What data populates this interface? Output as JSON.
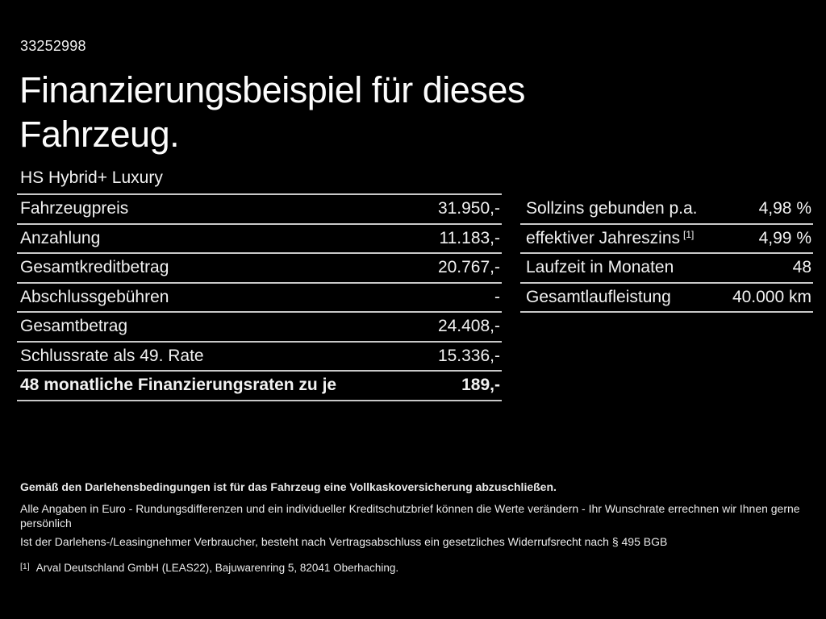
{
  "header": {
    "vehicle_id": "33252998",
    "title": "Finanzierungsbeispiel für dieses Fahrzeug.",
    "model_name": "HS Hybrid+ Luxury"
  },
  "left_table": {
    "rows": [
      {
        "label": "Fahrzeugpreis",
        "value": "31.950,-"
      },
      {
        "label": "Anzahlung",
        "value": "11.183,-"
      },
      {
        "label": "Gesamtkreditbetrag",
        "value": "20.767,-"
      },
      {
        "label": "Abschlussgebühren",
        "value": "-"
      },
      {
        "label": "Gesamtbetrag",
        "value": "24.408,-"
      },
      {
        "label": "Schlussrate als 49. Rate",
        "value": "15.336,-"
      },
      {
        "label": "48 monatliche Finanzierungsraten zu je",
        "value": "189,-"
      }
    ]
  },
  "right_table": {
    "rows": [
      {
        "label": "Sollzins gebunden p.a.",
        "value": "4,98 %"
      },
      {
        "label": "effektiver Jahreszins",
        "sup": "[1]",
        "value": "4,99 %"
      },
      {
        "label": "Laufzeit in Monaten",
        "value": "48"
      },
      {
        "label": "Gesamtlaufleistung",
        "value": "40.000 km"
      }
    ]
  },
  "legal": {
    "bold_note": "Gemäß den Darlehensbedingungen ist für das Fahrzeug eine Vollkaskoversicherung abzuschließen.",
    "note1": "Alle Angaben in Euro - Rundungsdifferenzen und ein individueller Kreditschutzbrief können die Werte verändern - Ihr Wunschrate errechnen wir Ihnen gerne persönlich",
    "note2": "Ist der Darlehens-/Leasingnehmer Verbraucher, besteht nach Vertragsabschluss ein gesetzliches Widerrufsrecht nach § 495 BGB",
    "footnote_marker": "[1]",
    "footnote_text": "Arval Deutschland GmbH (LEAS22), Bajuwarenring 5, 82041 Oberhaching."
  },
  "colors": {
    "background": "#000000",
    "text": "#f2f2f2",
    "divider": "#c9c9c9"
  }
}
